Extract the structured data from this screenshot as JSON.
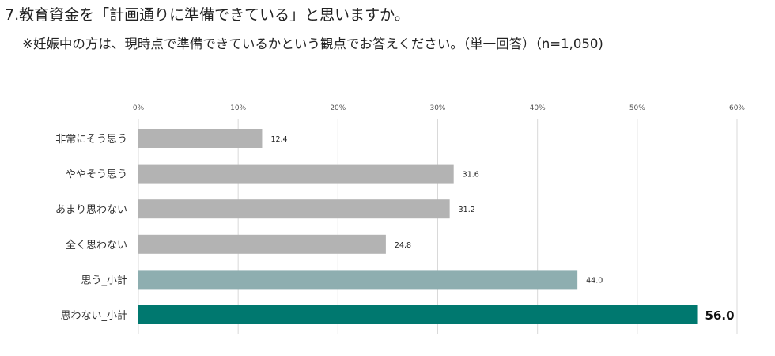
{
  "title": "7.教育資金を「計画通りに準備できている」と思いますか。",
  "subtitle": "※妊娠中の方は、現時点で準備できているかという観点でお答えください。（単一回答）（n=1,050)",
  "chart_data": {
    "type": "bar",
    "orientation": "horizontal",
    "title": "7.教育資金を「計画通りに準備できている」と思いますか。",
    "subtitle": "※妊娠中の方は、現時点で準備できているかという観点でお答えください。（単一回答）（n=1,050)",
    "xlim": [
      0,
      60
    ],
    "x_ticks": [
      "0%",
      "10%",
      "20%",
      "30%",
      "40%",
      "50%",
      "60%"
    ],
    "x_tick_values": [
      0,
      10,
      20,
      30,
      40,
      50,
      60
    ],
    "grid": true,
    "categories": [
      "非常にそう思う",
      "ややそう思う",
      "あまり思わない",
      "全く思わない",
      "思う_小計",
      "思わない_小計"
    ],
    "values": [
      12.4,
      31.6,
      31.2,
      24.8,
      44.0,
      56.0
    ],
    "value_labels": [
      "12.4",
      "31.6",
      "31.2",
      "24.8",
      "44.0",
      "56.0"
    ],
    "bar_colors": [
      "#b3b3b3",
      "#b3b3b3",
      "#b3b3b3",
      "#b3b3b3",
      "#8eaeb0",
      "#00786f"
    ],
    "highlighted_label": "56.0"
  }
}
